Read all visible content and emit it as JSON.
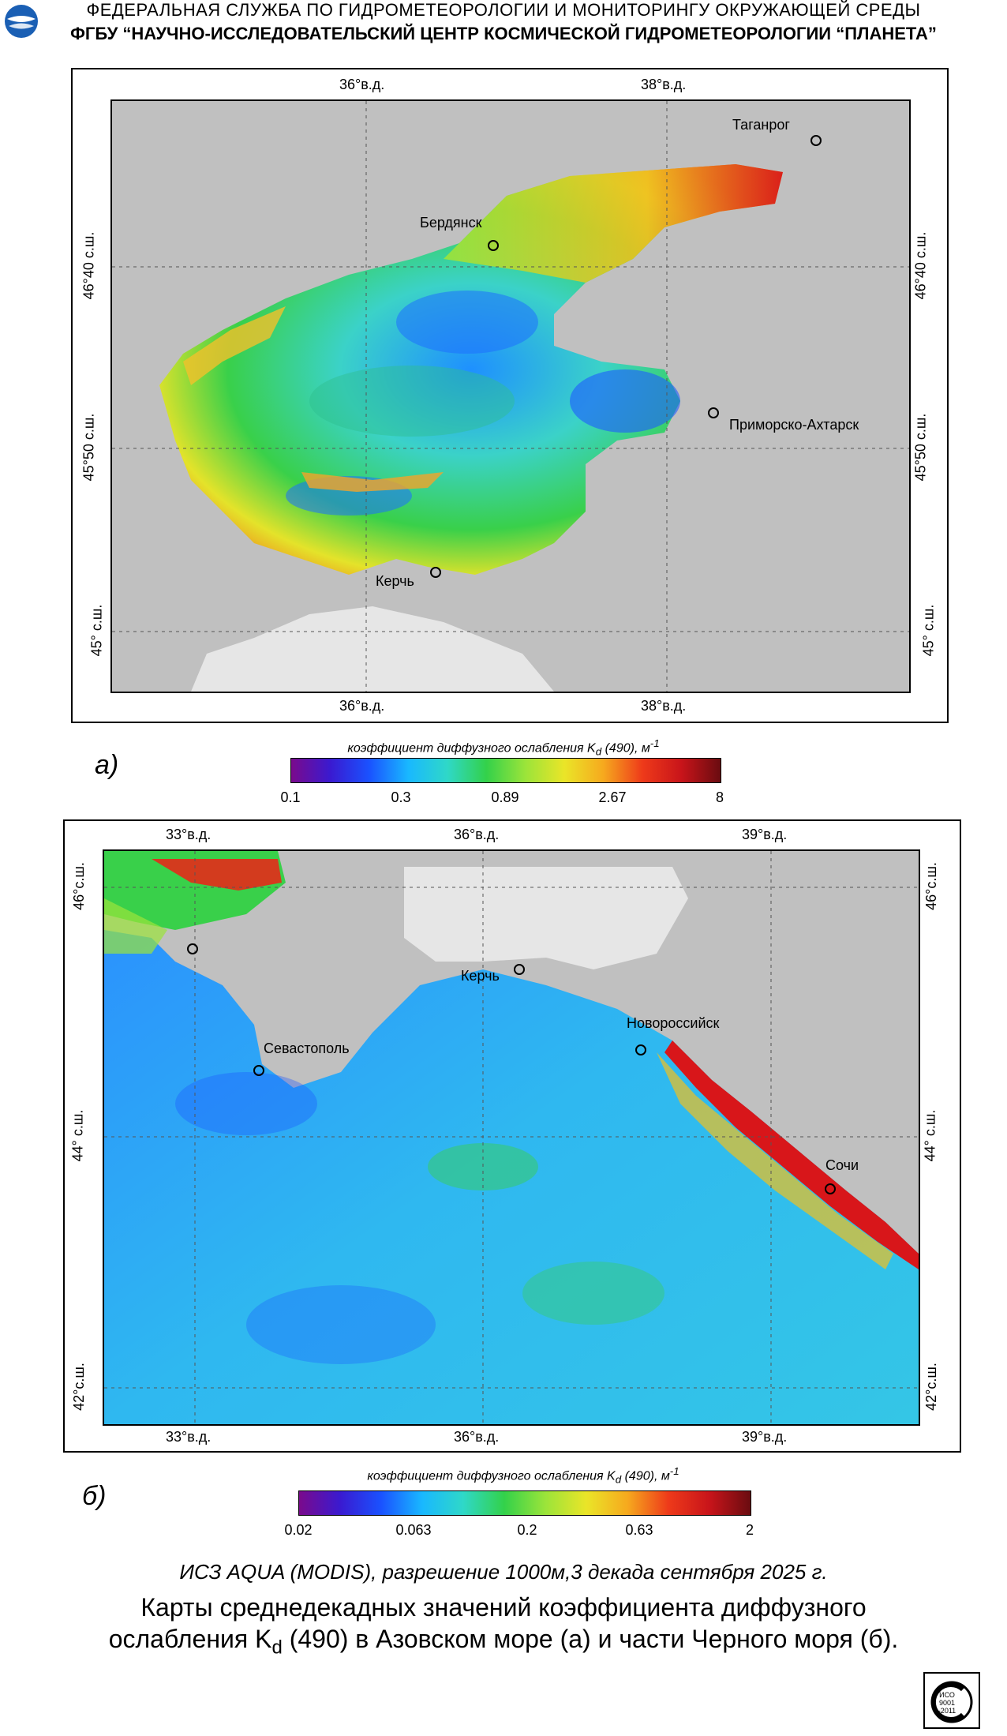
{
  "header": {
    "line1": "ФЕДЕРАЛЬНАЯ  СЛУЖБА  ПО ГИДРОМЕТЕОРОЛОГИИ И МОНИТОРИНГУ ОКРУЖАЮЩЕЙ СРЕДЫ",
    "line2": "ФГБУ “НАУЧНО-ИССЛЕДОВАТЕЛЬСКИЙ ЦЕНТР КОСМИЧЕСКОЙ ГИДРОМЕТЕОРОЛОГИИ “ПЛАНЕТА”",
    "logo_icon": "planeta-logo-icon"
  },
  "map_a": {
    "panel_label": "а)",
    "lon_top": [
      "36°в.д.",
      "38°в.д."
    ],
    "lon_bottom": [
      "36°в.д.",
      "38°в.д."
    ],
    "lat_left": [
      "46°40 с.ш.",
      "45°50 с.ш.",
      "45° с.ш."
    ],
    "lat_right": [
      "46°40 с.ш.",
      "45°50 с.ш.",
      "45° с.ш."
    ],
    "cities": [
      "Таганрог",
      "Бердянск",
      "Приморско-Ахтарск",
      "Керчь"
    ],
    "colorbar": {
      "title": "коэффициент диффузного ослабления  K",
      "title_sub": "d",
      "title_tail": " (490), м",
      "title_sup": "-1",
      "ticks": [
        "0.1",
        "0.3",
        "0.89",
        "2.67",
        "8"
      ]
    }
  },
  "map_b": {
    "panel_label": "б)",
    "lon_top": [
      "33°в.д.",
      "36°в.д.",
      "39°в.д."
    ],
    "lon_bottom": [
      "33°в.д.",
      "36°в.д.",
      "39°в.д."
    ],
    "lat_left": [
      "46°с.ш.",
      "44° с.ш.",
      "42°с.ш."
    ],
    "lat_right": [
      "46°с.ш.",
      "44° с.ш.",
      "42°с.ш."
    ],
    "cities": [
      "Керчь",
      "Новороссийск",
      "Севастополь",
      "Сочи"
    ],
    "colorbar": {
      "title": "коэффициент диффузного ослабления  K",
      "title_sub": "d",
      "title_tail": " (490), м",
      "title_sup": "-1",
      "ticks": [
        "0.02",
        "0.063",
        "0.2",
        "0.63",
        "2"
      ]
    }
  },
  "caption": {
    "source": "ИСЗ AQUA (MODIS), разрешение 1000м,3 декада сентября 2025 г.",
    "line1": "Карты среднедекадных значений коэффициента диффузного",
    "line2_pre": "ослабления K",
    "line2_sub": "d",
    "line2_post": " (490) в Азовском море (а) и части Черного моря (б)."
  },
  "iso_badge": {
    "icon": "iso-certification-badge-icon",
    "text1": "ИСО",
    "text2": "9001",
    "text3": "-2011"
  },
  "colors": {
    "land": "#c0c0c0",
    "crimea_light": "#e6e6e6",
    "water_low": "#1e6fff",
    "water_mid": "#33d14a",
    "water_high": "#e8141a"
  }
}
